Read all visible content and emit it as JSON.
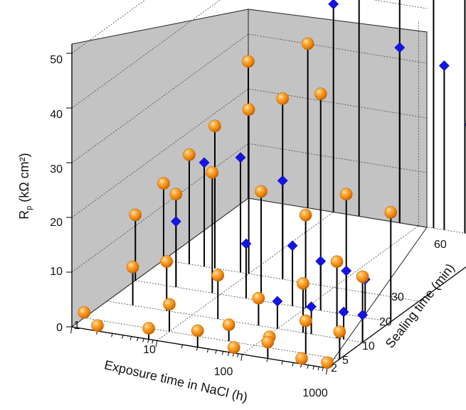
{
  "chart_data": {
    "type": "scatter3d",
    "axes": {
      "x": {
        "label": "Exposure time in NaCl (h)",
        "scale": "log",
        "range": [
          1,
          1000
        ],
        "tick_labels": [
          "1",
          "10",
          "100",
          "1000"
        ]
      },
      "y": {
        "label": "Sealing time (min)",
        "scale": "categorical",
        "tick_labels": [
          "2",
          "5",
          "10",
          "20",
          "30",
          "60"
        ]
      },
      "z": {
        "label_main": "R",
        "label_sub": "p",
        "label_rest": " (kΩ cm²)",
        "range": [
          0,
          50
        ],
        "tick_labels": [
          "0",
          "10",
          "20",
          "30",
          "40",
          "50"
        ]
      }
    },
    "grid": true,
    "series": [
      {
        "marker": "sphere",
        "color": "#f08a10",
        "points": [
          {
            "x": 1,
            "y": 60,
            "z": 25
          },
          {
            "x": 5,
            "y": 60,
            "z": 30
          },
          {
            "x": 20,
            "y": 60,
            "z": 43
          },
          {
            "x": 60,
            "y": 60,
            "z": 50
          },
          {
            "x": 150,
            "y": 60,
            "z": 54
          },
          {
            "x": 350,
            "y": 60,
            "z": 48
          },
          {
            "x": 650,
            "y": 60,
            "z": 50
          },
          {
            "x": 1000,
            "y": 60,
            "z": 46
          },
          {
            "x": 1000,
            "y": 60,
            "z": 42
          },
          {
            "x": 1,
            "y": 30,
            "z": 14
          },
          {
            "x": 2,
            "y": 30,
            "z": 20
          },
          {
            "x": 4,
            "y": 30,
            "z": 26
          },
          {
            "x": 10,
            "y": 30,
            "z": 30
          },
          {
            "x": 25,
            "y": 30,
            "z": 33
          },
          {
            "x": 70,
            "y": 30,
            "z": 35
          },
          {
            "x": 1,
            "y": 20,
            "z": 12
          },
          {
            "x": 3,
            "y": 20,
            "z": 17
          },
          {
            "x": 8,
            "y": 20,
            "z": 22
          },
          {
            "x": 30,
            "y": 20,
            "z": 20
          },
          {
            "x": 100,
            "y": 20,
            "z": 17
          },
          {
            "x": 300,
            "y": 20,
            "z": 22
          },
          {
            "x": 1000,
            "y": 20,
            "z": 20
          },
          {
            "x": 2,
            "y": 10,
            "z": 7
          },
          {
            "x": 5,
            "y": 10,
            "z": 9
          },
          {
            "x": 20,
            "y": 10,
            "z": 8
          },
          {
            "x": 60,
            "y": 10,
            "z": 5
          },
          {
            "x": 200,
            "y": 10,
            "z": 9
          },
          {
            "x": 500,
            "y": 10,
            "z": 14
          },
          {
            "x": 1000,
            "y": 10,
            "z": 12
          },
          {
            "x": 1,
            "y": 5,
            "z": 1
          },
          {
            "x": 10,
            "y": 5,
            "z": 5
          },
          {
            "x": 50,
            "y": 5,
            "z": 3
          },
          {
            "x": 150,
            "y": 5,
            "z": 2
          },
          {
            "x": 400,
            "y": 5,
            "z": 6
          },
          {
            "x": 1000,
            "y": 5,
            "z": 5
          },
          {
            "x": 2,
            "y": 2,
            "z": 1
          },
          {
            "x": 8,
            "y": 2,
            "z": 2
          },
          {
            "x": 30,
            "y": 2,
            "z": 3
          },
          {
            "x": 80,
            "y": 2,
            "z": 1
          },
          {
            "x": 200,
            "y": 2,
            "z": 3
          },
          {
            "x": 500,
            "y": 2,
            "z": 1
          },
          {
            "x": 1000,
            "y": 2,
            "z": 1
          }
        ]
      },
      {
        "marker": "diamond",
        "color": "#1414e6",
        "points": [
          {
            "x": 10,
            "y": 60,
            "z": 38
          },
          {
            "x": 60,
            "y": 60,
            "z": 32
          },
          {
            "x": 200,
            "y": 60,
            "z": 30
          },
          {
            "x": 400,
            "y": 60,
            "z": 20
          },
          {
            "x": 700,
            "y": 60,
            "z": 18
          },
          {
            "x": 1000,
            "y": 60,
            "z": 13
          },
          {
            "x": 1000,
            "y": 60,
            "z": 9
          },
          {
            "x": 3,
            "y": 30,
            "z": 19
          },
          {
            "x": 8,
            "y": 30,
            "z": 21
          },
          {
            "x": 25,
            "y": 30,
            "z": 18
          },
          {
            "x": 3,
            "y": 20,
            "z": 12
          },
          {
            "x": 20,
            "y": 20,
            "z": 10
          },
          {
            "x": 70,
            "y": 20,
            "z": 11
          },
          {
            "x": 150,
            "y": 20,
            "z": 9
          },
          {
            "x": 300,
            "y": 20,
            "z": 8
          },
          {
            "x": 500,
            "y": 20,
            "z": 7
          },
          {
            "x": 100,
            "y": 10,
            "z": 5
          },
          {
            "x": 250,
            "y": 10,
            "z": 5
          },
          {
            "x": 600,
            "y": 10,
            "z": 5
          },
          {
            "x": 1000,
            "y": 10,
            "z": 5
          }
        ]
      }
    ]
  }
}
